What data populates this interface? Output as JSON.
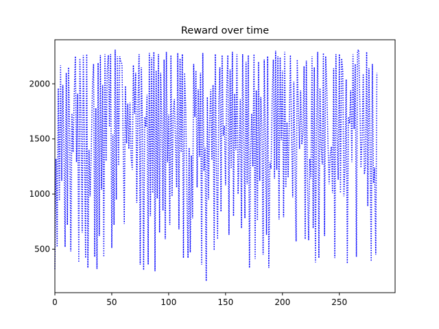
{
  "chart_data": {
    "type": "line",
    "title": "Reward over time",
    "xlabel": "",
    "ylabel": "",
    "xlim": [
      0,
      299
    ],
    "ylim": [
      105,
      2400
    ],
    "x_ticks": [
      0,
      50,
      100,
      150,
      200,
      250
    ],
    "x_tick_labels": [
      "0",
      "50",
      "100",
      "150",
      "200",
      "250"
    ],
    "y_ticks": [
      500,
      1000,
      1500,
      2000
    ],
    "y_tick_labels": [
      "500",
      "1000",
      "1500",
      "2000"
    ],
    "grid": false,
    "legend": "none",
    "series": [
      {
        "name": "reward",
        "color": "#0000ff",
        "line_style": "dotted",
        "x_start": 0,
        "x_step": 1,
        "values": [
          320,
          1320,
          520,
          1960,
          940,
          2170,
          1120,
          1990,
          1420,
          520,
          2100,
          720,
          2150,
          1580,
          480,
          1730,
          1380,
          1900,
          2250,
          1290,
          1910,
          380,
          2230,
          1680,
          650,
          2260,
          1450,
          420,
          2270,
          330,
          1400,
          980,
          1390,
          1960,
          2180,
          430,
          1780,
          320,
          2190,
          620,
          2260,
          1040,
          1990,
          430,
          2270,
          1300,
          2120,
          2260,
          1610,
          2270,
          510,
          1540,
          720,
          2310,
          950,
          2250,
          1260,
          2250,
          2200,
          2180,
          1490,
          730,
          1980,
          1460,
          1820,
          1410,
          1830,
          1330,
          1220,
          2170,
          1730,
          2100,
          920,
          1800,
          2270,
          360,
          2150,
          1620,
          310,
          1700,
          1610,
          1900,
          360,
          2280,
          800,
          2240,
          1010,
          2290,
          300,
          2120,
          960,
          2270,
          650,
          2100,
          1680,
          850,
          2220,
          590,
          2290,
          1290,
          1720,
          720,
          2260,
          980,
          1730,
          1860,
          1470,
          1060,
          2280,
          680,
          2230,
          1380,
          2270,
          420,
          2100,
          1790,
          1020,
          420,
          1420,
          470,
          1350,
          780,
          2180,
          1700,
          2120,
          1060,
          1950,
          1340,
          2100,
          360,
          2280,
          1210,
          1420,
          210,
          1880,
          950,
          1650,
          1950,
          1310,
          1990,
          490,
          2270,
          1230,
          590,
          1810,
          2150,
          840,
          2260,
          1530,
          1620,
          1080,
          1950,
          2260,
          630,
          2130,
          1230,
          2290,
          800,
          1910,
          1400,
          2270,
          1000,
          1380,
          1860,
          690,
          2270,
          1550,
          780,
          2200,
          1090,
          2260,
          330,
          1360,
          1730,
          1250,
          2270,
          410,
          1940,
          760,
          2200,
          1120,
          1880,
          1590,
          450,
          2220,
          1450,
          630,
          2250,
          330,
          1290,
          1230,
          1890,
          2220,
          1140,
          2300,
          1220,
          2250,
          770,
          2240,
          1490,
          2120,
          790,
          2290,
          1060,
          1650,
          1150,
          1640,
          2260,
          1570,
          970,
          2020,
          1320,
          570,
          2220,
          1760,
          1410,
          1940,
          1450,
          1550,
          2160,
          590,
          2210,
          1120,
          580,
          1320,
          1140,
          2250,
          690,
          2150,
          380,
          1590,
          2290,
          420,
          1960,
          1430,
          1270,
          2280,
          620,
          2250,
          1950,
          1460,
          1090,
          1350,
          1430,
          1010,
          2140,
          420,
          2270,
          1540,
          1130,
          2270,
          1010,
          2230,
          2120,
          980,
          1250,
          2040,
          370,
          1700,
          1640,
          1940,
          1290,
          2270,
          1590,
          2180,
          430,
          2300,
          2310,
          1850,
          1240,
          1500,
          2090,
          1180,
          1250,
          2290,
          890,
          2140,
          1490,
          390,
          2180,
          1100,
          1240,
          450,
          2100
        ]
      }
    ]
  }
}
